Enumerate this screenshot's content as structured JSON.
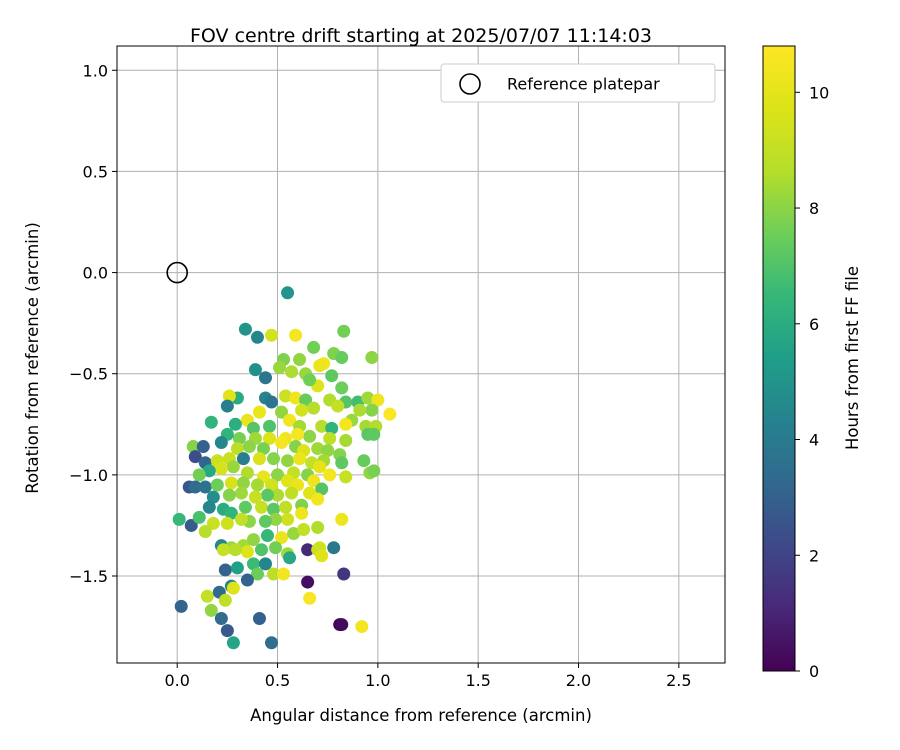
{
  "chart_data": {
    "type": "scatter",
    "title": "FOV centre drift starting at 2025/07/07 11:14:03",
    "xlabel": "Angular distance from reference (arcmin)",
    "ylabel": "Rotation from reference (arcmin)",
    "xlim": [
      -0.3,
      2.73
    ],
    "ylim": [
      -1.93,
      1.12
    ],
    "xticks": [
      0.0,
      0.5,
      1.0,
      1.5,
      2.0,
      2.5
    ],
    "xtick_labels": [
      "0.0",
      "0.5",
      "1.0",
      "1.5",
      "2.0",
      "2.5"
    ],
    "yticks": [
      1.0,
      0.5,
      0.0,
      -0.5,
      -1.0,
      -1.5
    ],
    "ytick_labels": [
      "1.0",
      "0.5",
      "0.0",
      "−0.5",
      "−1.0",
      "−1.5"
    ],
    "grid": true,
    "colormap": "viridis",
    "colorbar": {
      "label": "Hours from first FF file",
      "range": [
        0,
        10.8
      ],
      "ticks": [
        0,
        2,
        4,
        6,
        8,
        10
      ],
      "tick_labels": [
        "0",
        "2",
        "4",
        "6",
        "8",
        "10"
      ]
    },
    "legend": {
      "position": "upper right",
      "entries": [
        {
          "label": "Reference platepar",
          "marker": "open-circle"
        }
      ]
    },
    "reference_point": {
      "x": 0.0,
      "y": 0.0
    },
    "points": [
      [
        0.55,
        -0.1,
        5.0
      ],
      [
        0.34,
        -0.28,
        5.0
      ],
      [
        0.47,
        -0.31,
        9.4
      ],
      [
        0.59,
        -0.31,
        10.5
      ],
      [
        0.4,
        -0.32,
        4.5
      ],
      [
        0.83,
        -0.29,
        7.6
      ],
      [
        0.68,
        -0.37,
        7.6
      ],
      [
        0.78,
        -0.4,
        7.8
      ],
      [
        0.53,
        -0.43,
        7.8
      ],
      [
        0.61,
        -0.43,
        8.1
      ],
      [
        0.97,
        -0.42,
        8.0
      ],
      [
        0.73,
        -0.45,
        10.4
      ],
      [
        0.71,
        -0.46,
        10.2
      ],
      [
        0.39,
        -0.48,
        4.9
      ],
      [
        0.51,
        -0.47,
        8.2
      ],
      [
        0.82,
        -0.42,
        7.4
      ],
      [
        0.77,
        -0.51,
        7.3
      ],
      [
        0.44,
        -0.52,
        3.8
      ],
      [
        0.57,
        -0.49,
        8.5
      ],
      [
        0.64,
        -0.5,
        8.2
      ],
      [
        0.82,
        -0.57,
        7.5
      ],
      [
        0.7,
        -0.56,
        9.8
      ],
      [
        0.66,
        -0.53,
        7.6
      ],
      [
        0.3,
        -0.62,
        5.9
      ],
      [
        0.44,
        -0.62,
        4.4
      ],
      [
        0.47,
        -0.64,
        3.8
      ],
      [
        0.26,
        -0.61,
        9.9
      ],
      [
        0.25,
        -0.66,
        4.2
      ],
      [
        0.54,
        -0.61,
        9.2
      ],
      [
        0.59,
        -0.62,
        10.3
      ],
      [
        0.64,
        -0.63,
        7.4
      ],
      [
        0.76,
        -0.63,
        8.6
      ],
      [
        0.84,
        -0.64,
        7.1
      ],
      [
        0.9,
        -0.64,
        6.7
      ],
      [
        0.95,
        -0.62,
        8.3
      ],
      [
        1.0,
        -0.63,
        10.3
      ],
      [
        1.06,
        -0.7,
        10.7
      ],
      [
        0.97,
        -0.68,
        7.9
      ],
      [
        0.91,
        -0.68,
        8.5
      ],
      [
        0.87,
        -0.73,
        8.2
      ],
      [
        0.8,
        -0.66,
        9.0
      ],
      [
        0.68,
        -0.67,
        8.7
      ],
      [
        0.62,
        -0.68,
        9.4
      ],
      [
        0.52,
        -0.69,
        8.1
      ],
      [
        0.41,
        -0.69,
        10.2
      ],
      [
        0.35,
        -0.73,
        10.1
      ],
      [
        0.17,
        -0.74,
        6.3
      ],
      [
        0.29,
        -0.75,
        6.1
      ],
      [
        0.38,
        -0.77,
        7.1
      ],
      [
        0.46,
        -0.76,
        7.0
      ],
      [
        0.56,
        -0.73,
        10.4
      ],
      [
        0.61,
        -0.76,
        8.4
      ],
      [
        0.72,
        -0.76,
        8.7
      ],
      [
        0.77,
        -0.77,
        6.3
      ],
      [
        0.84,
        -0.75,
        10.4
      ],
      [
        0.94,
        -0.76,
        8.4
      ],
      [
        0.99,
        -0.76,
        8.6
      ],
      [
        0.95,
        -0.8,
        7.2
      ],
      [
        0.98,
        -0.8,
        7.3
      ],
      [
        0.84,
        -0.83,
        8.4
      ],
      [
        0.76,
        -0.82,
        8.9
      ],
      [
        0.66,
        -0.81,
        8.0
      ],
      [
        0.6,
        -0.8,
        10.5
      ],
      [
        0.54,
        -0.82,
        10.3
      ],
      [
        0.46,
        -0.82,
        9.7
      ],
      [
        0.39,
        -0.82,
        8.3
      ],
      [
        0.31,
        -0.82,
        7.7
      ],
      [
        0.25,
        -0.8,
        6.3
      ],
      [
        0.22,
        -0.84,
        4.5
      ],
      [
        0.3,
        -0.87,
        8.8
      ],
      [
        0.36,
        -0.86,
        8.0
      ],
      [
        0.43,
        -0.87,
        7.7
      ],
      [
        0.52,
        -0.84,
        10.5
      ],
      [
        0.59,
        -0.86,
        7.9
      ],
      [
        0.63,
        -0.88,
        9.7
      ],
      [
        0.7,
        -0.87,
        8.3
      ],
      [
        0.75,
        -0.88,
        8.1
      ],
      [
        0.81,
        -0.9,
        7.9
      ],
      [
        0.08,
        -0.86,
        7.9
      ],
      [
        0.13,
        -0.86,
        3.0
      ],
      [
        0.09,
        -0.91,
        2.3
      ],
      [
        0.14,
        -0.94,
        3.2
      ],
      [
        0.2,
        -0.93,
        9.2
      ],
      [
        0.26,
        -0.92,
        9.2
      ],
      [
        0.33,
        -0.92,
        4.1
      ],
      [
        0.41,
        -0.92,
        9.6
      ],
      [
        0.48,
        -0.92,
        7.9
      ],
      [
        0.55,
        -0.93,
        8.1
      ],
      [
        0.61,
        -0.92,
        10.2
      ],
      [
        0.67,
        -0.94,
        9.0
      ],
      [
        0.73,
        -0.93,
        8.4
      ],
      [
        0.82,
        -0.94,
        7.3
      ],
      [
        0.93,
        -0.93,
        7.4
      ],
      [
        0.96,
        -0.99,
        8.1
      ],
      [
        0.98,
        -0.98,
        7.7
      ],
      [
        0.84,
        -1.01,
        9.1
      ],
      [
        0.76,
        -1.0,
        10.4
      ],
      [
        0.71,
        -0.96,
        10.0
      ],
      [
        0.65,
        -1.0,
        7.9
      ],
      [
        0.58,
        -0.99,
        9.0
      ],
      [
        0.5,
        -1.0,
        8.0
      ],
      [
        0.43,
        -1.01,
        10.1
      ],
      [
        0.35,
        -0.99,
        8.6
      ],
      [
        0.28,
        -0.96,
        8.2
      ],
      [
        0.22,
        -0.97,
        9.5
      ],
      [
        0.16,
        -0.98,
        5.8
      ],
      [
        0.11,
        -1.0,
        7.6
      ],
      [
        0.06,
        -1.06,
        2.6
      ],
      [
        0.09,
        -1.06,
        3.4
      ],
      [
        0.14,
        -1.06,
        3.7
      ],
      [
        0.2,
        -1.05,
        7.5
      ],
      [
        0.27,
        -1.04,
        9.6
      ],
      [
        0.33,
        -1.04,
        8.1
      ],
      [
        0.4,
        -1.05,
        8.4
      ],
      [
        0.47,
        -1.05,
        9.4
      ],
      [
        0.55,
        -1.03,
        9.9
      ],
      [
        0.6,
        -1.05,
        10.2
      ],
      [
        0.68,
        -1.03,
        10.3
      ],
      [
        0.72,
        -1.07,
        7.1
      ],
      [
        0.66,
        -1.09,
        9.8
      ],
      [
        0.57,
        -1.09,
        8.9
      ],
      [
        0.5,
        -1.1,
        8.5
      ],
      [
        0.45,
        -1.1,
        7.2
      ],
      [
        0.39,
        -1.11,
        9.1
      ],
      [
        0.32,
        -1.09,
        8.3
      ],
      [
        0.26,
        -1.1,
        7.9
      ],
      [
        0.18,
        -1.11,
        4.8
      ],
      [
        0.07,
        -1.25,
        2.8
      ],
      [
        0.01,
        -1.22,
        6.5
      ],
      [
        0.11,
        -1.21,
        6.9
      ],
      [
        0.16,
        -1.16,
        4.4
      ],
      [
        0.23,
        -1.17,
        6.0
      ],
      [
        0.27,
        -1.19,
        6.3
      ],
      [
        0.34,
        -1.16,
        7.3
      ],
      [
        0.42,
        -1.16,
        9.1
      ],
      [
        0.48,
        -1.17,
        7.2
      ],
      [
        0.54,
        -1.16,
        8.9
      ],
      [
        0.62,
        -1.15,
        7.8
      ],
      [
        0.7,
        -1.12,
        10.4
      ],
      [
        0.62,
        -1.19,
        10.3
      ],
      [
        0.55,
        -1.22,
        9.3
      ],
      [
        0.49,
        -1.22,
        8.1
      ],
      [
        0.44,
        -1.23,
        7.3
      ],
      [
        0.36,
        -1.23,
        8.0
      ],
      [
        0.32,
        -1.22,
        9.0
      ],
      [
        0.25,
        -1.24,
        9.3
      ],
      [
        0.18,
        -1.24,
        9.2
      ],
      [
        0.14,
        -1.28,
        8.7
      ],
      [
        0.22,
        -1.35,
        4.5
      ],
      [
        0.27,
        -1.36,
        8.2
      ],
      [
        0.33,
        -1.35,
        8.4
      ],
      [
        0.38,
        -1.32,
        8.1
      ],
      [
        0.45,
        -1.3,
        6.5
      ],
      [
        0.52,
        -1.31,
        10.2
      ],
      [
        0.58,
        -1.29,
        8.2
      ],
      [
        0.63,
        -1.27,
        9.0
      ],
      [
        0.7,
        -1.26,
        8.6
      ],
      [
        0.82,
        -1.22,
        10.3
      ],
      [
        0.71,
        -1.36,
        9.4
      ],
      [
        0.65,
        -1.37,
        1.1
      ],
      [
        0.7,
        -1.37,
        9.2
      ],
      [
        0.78,
        -1.36,
        3.9
      ],
      [
        0.72,
        -1.4,
        9.8
      ],
      [
        0.55,
        -1.39,
        8.3
      ],
      [
        0.49,
        -1.36,
        7.6
      ],
      [
        0.42,
        -1.37,
        7.0
      ],
      [
        0.35,
        -1.38,
        9.8
      ],
      [
        0.29,
        -1.37,
        8.7
      ],
      [
        0.23,
        -1.37,
        9.1
      ],
      [
        0.24,
        -1.47,
        3.1
      ],
      [
        0.3,
        -1.46,
        5.5
      ],
      [
        0.38,
        -1.44,
        6.6
      ],
      [
        0.44,
        -1.44,
        4.4
      ],
      [
        0.56,
        -1.41,
        5.8
      ],
      [
        0.4,
        -1.49,
        7.5
      ],
      [
        0.35,
        -1.52,
        3.1
      ],
      [
        0.48,
        -1.49,
        8.8
      ],
      [
        0.53,
        -1.49,
        10.4
      ],
      [
        0.65,
        -1.53,
        0.4
      ],
      [
        0.83,
        -1.49,
        1.5
      ],
      [
        0.27,
        -1.55,
        4.4
      ],
      [
        0.28,
        -1.56,
        9.8
      ],
      [
        0.15,
        -1.6,
        9.0
      ],
      [
        0.21,
        -1.58,
        3.4
      ],
      [
        0.24,
        -1.62,
        8.9
      ],
      [
        0.66,
        -1.61,
        10.6
      ],
      [
        0.02,
        -1.65,
        3.1
      ],
      [
        0.17,
        -1.67,
        8.1
      ],
      [
        0.22,
        -1.71,
        3.4
      ],
      [
        0.41,
        -1.71,
        3.0
      ],
      [
        0.25,
        -1.77,
        2.7
      ],
      [
        0.81,
        -1.74,
        0.1
      ],
      [
        0.82,
        -1.74,
        0.3
      ],
      [
        0.92,
        -1.75,
        10.4
      ],
      [
        0.47,
        -1.83,
        3.5
      ],
      [
        0.28,
        -1.83,
        5.7
      ]
    ]
  }
}
